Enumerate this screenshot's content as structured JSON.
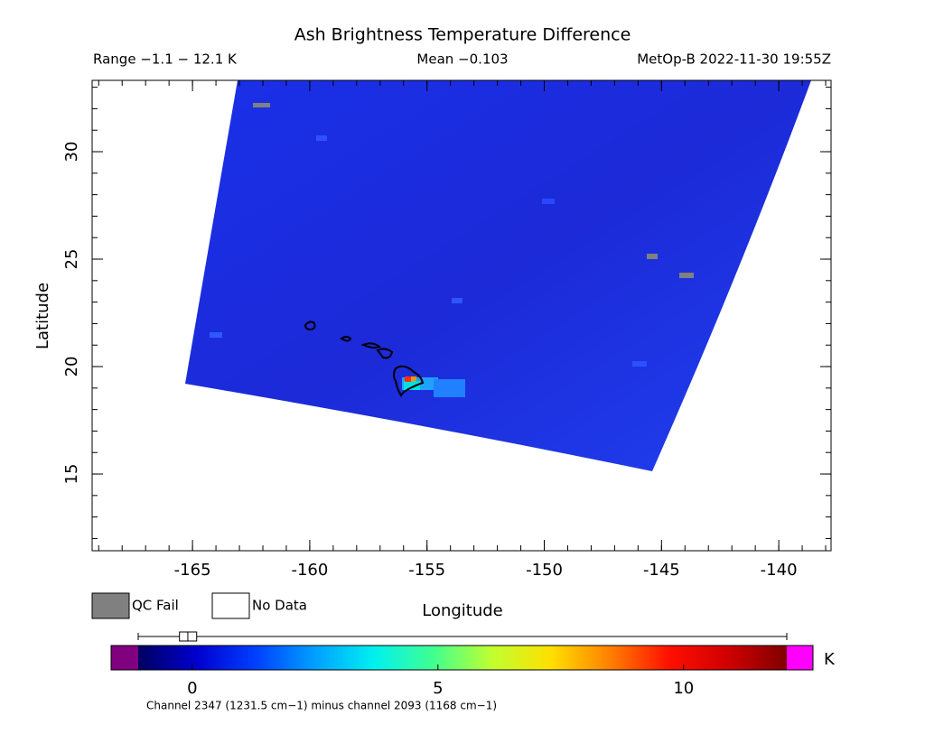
{
  "chart_data": {
    "type": "map",
    "title": "Ash Brightness Temperature Difference",
    "range_label": "Range −1.1 − 12.1 K",
    "mean_label": "Mean −0.103",
    "satellite_label": "MetOp-B 2022-11-30 19:55Z",
    "x_label": "Longitude",
    "y_label": "Latitude",
    "xlim": [
      -169.28,
      -137.77
    ],
    "ylim": [
      11.43,
      33.32
    ],
    "xticks": [
      -165,
      -160,
      -155,
      -150,
      -145,
      -140
    ],
    "yticks": [
      15,
      20,
      25,
      30
    ],
    "legend": [
      {
        "name": "QC Fail",
        "color": "#808080"
      },
      {
        "name": "No Data",
        "color": "#ffffff"
      }
    ],
    "colorbar": {
      "lim": [
        -1.1,
        12.1
      ],
      "ticks": [
        0,
        5,
        10
      ],
      "unit": "K",
      "label": "Channel 2347 (1231.5 cm−1) minus channel 2093 (1168 cm−1)",
      "under_color": "#800080",
      "over_color": "#ff00ff",
      "colors": [
        "#000060",
        "#0000d0",
        "#0040ff",
        "#00a0ff",
        "#00f0f0",
        "#40ff90",
        "#c0ff30",
        "#ffe000",
        "#ff8000",
        "#ff1000",
        "#d00000",
        "#800000"
      ]
    },
    "box": {
      "min": -1.1,
      "q1": -0.26,
      "median": -0.09,
      "q3": 0.09,
      "max": 12.1
    }
  }
}
